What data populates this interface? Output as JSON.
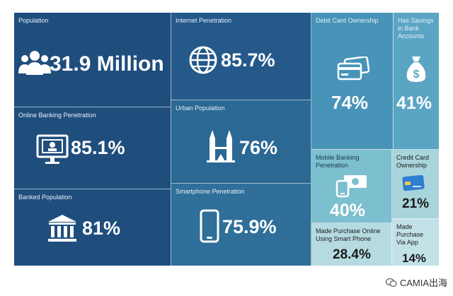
{
  "tiles": {
    "population": {
      "label": "Population",
      "value": "31.9 Million",
      "icon": "people-icon"
    },
    "internet": {
      "label": "Internet Penetration",
      "value": "85.7%",
      "icon": "globe-icon"
    },
    "debit": {
      "label": "Debit Card Ownership",
      "value": "74%",
      "icon": "cards-icon"
    },
    "savings": {
      "label": "Has Savings in Bank Accounts",
      "value": "41%",
      "icon": "money-bag-icon"
    },
    "online_banking": {
      "label": "Online Banking Penetration",
      "value": "85.1%",
      "icon": "computer-icon"
    },
    "urban": {
      "label": "Urban Population",
      "value": "76%",
      "icon": "towers-icon"
    },
    "banked": {
      "label": "Banked Population",
      "value": "81%",
      "icon": "bank-icon"
    },
    "smartphone": {
      "label": "Smartphone Penetration",
      "value": "75.9%",
      "icon": "smartphone-icon"
    },
    "mobile_banking": {
      "label": "Mobile Banking Penetration",
      "value": "40%",
      "icon": "mobile-banking-icon"
    },
    "credit": {
      "label": "Credit Card Ownership",
      "value": "21%",
      "icon": "credit-card-icon"
    },
    "purchase_phone": {
      "label": "Made Purchase Online Using Smart Phone",
      "value": "28.4%"
    },
    "purchase_app": {
      "label": "Made Purchase Via App",
      "value": "14%"
    }
  },
  "watermark": {
    "text": "CAMIA出海",
    "icon": "wechat-icon"
  },
  "colors": {
    "dark": "#1f4e7d",
    "mid": "#2c6b96",
    "light": "#4a98b8",
    "lighter": "#6fb5c9",
    "pale": "#a8d4dc"
  }
}
